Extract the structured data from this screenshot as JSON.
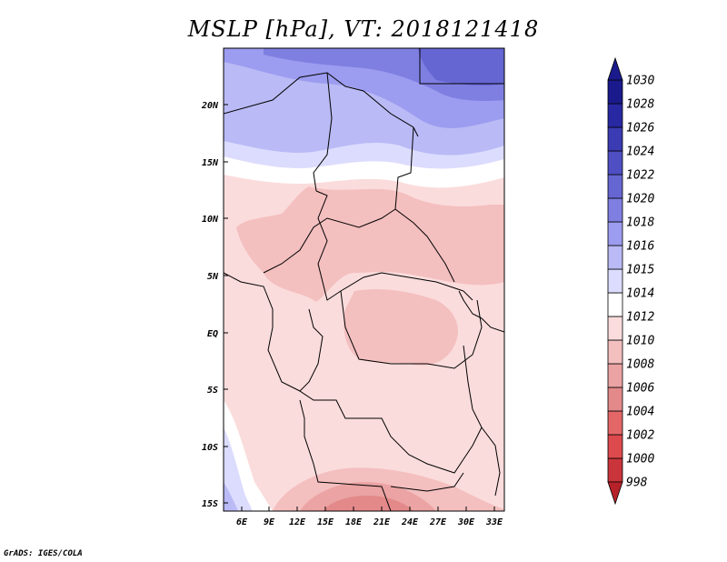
{
  "title": "MSLP [hPa], VT: 2018121418",
  "credit": "GrADS: IGES/COLA",
  "map": {
    "lat_labels": [
      "20N",
      "15N",
      "10N",
      "5N",
      "EQ",
      "5S",
      "10S",
      "15S"
    ],
    "lon_labels": [
      "6E",
      "9E",
      "12E",
      "15E",
      "18E",
      "21E",
      "24E",
      "27E",
      "30E",
      "33E"
    ]
  },
  "colorbar": {
    "levels": [
      "998",
      "1000",
      "1002",
      "1004",
      "1006",
      "1008",
      "1010",
      "1012",
      "1014",
      "1015",
      "1016",
      "1018",
      "1020",
      "1022",
      "1024",
      "1026",
      "1028",
      "1030"
    ],
    "colors": [
      "#b7222a",
      "#c9353b",
      "#dc4a4d",
      "#e46768",
      "#e3898a",
      "#eba3a3",
      "#f4bfbf",
      "#fbdcdc",
      "#ffffff",
      "#dcdcff",
      "#babaf6",
      "#9c9cf0",
      "#7f7fe2",
      "#6666d3",
      "#4f4fc3",
      "#3b3bb3",
      "#2828a3",
      "#1a1a8c"
    ]
  }
}
